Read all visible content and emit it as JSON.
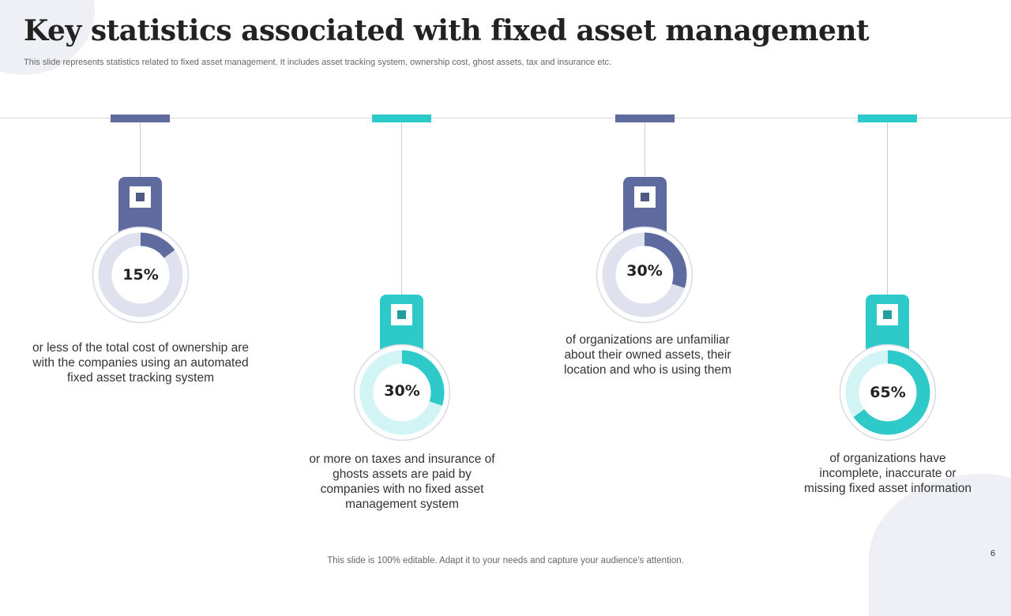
{
  "header": {
    "title": "Key statistics associated with fixed asset management",
    "subtitle": "This slide represents statistics related to fixed asset management. It includes asset tracking system, ownership cost, ghost assets, tax and insurance etc."
  },
  "colors": {
    "slate": "#5f6b9e",
    "teal": "#2ec9c9",
    "slate_track": "#dfe2ee",
    "teal_track": "#d3f4f5"
  },
  "stats": [
    {
      "value": "15%",
      "fraction": 0.15,
      "theme": "slate",
      "description": "or less of the total cost of ownership are with the companies using an automated fixed asset tracking system"
    },
    {
      "value": "30%",
      "fraction": 0.3,
      "theme": "teal",
      "description": "or more on taxes and insurance of ghosts assets are paid by companies with no fixed asset management system"
    },
    {
      "value": "30%",
      "fraction": 0.3,
      "theme": "slate",
      "description": "of organizations are unfamiliar about their owned assets, their location and who is using them"
    },
    {
      "value": "65%",
      "fraction": 0.65,
      "theme": "teal",
      "description": "of organizations have incomplete, inaccurate or missing fixed asset information"
    }
  ],
  "footer": {
    "note": "This slide is 100% editable. Adapt it to your needs and capture your audience's attention.",
    "page_number": "6"
  }
}
